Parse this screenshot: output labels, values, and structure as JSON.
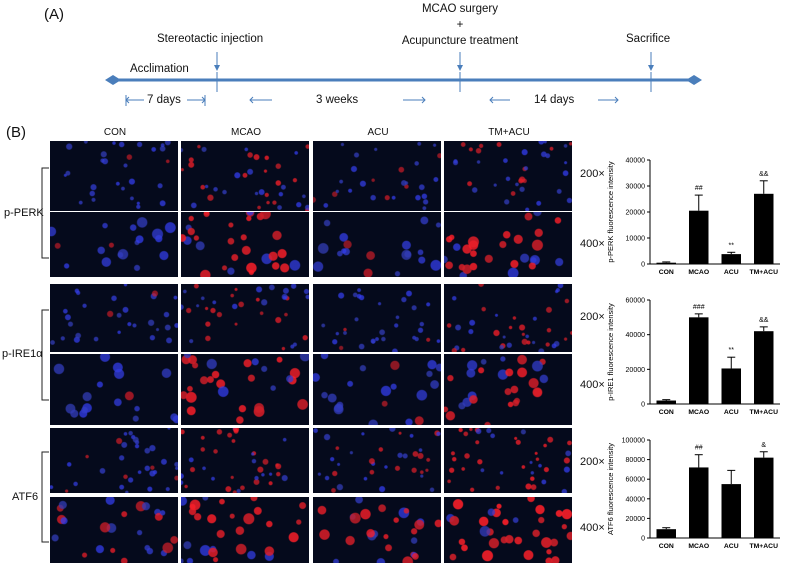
{
  "figure": {
    "panel_a_label": "(A)",
    "panel_b_label": "(B)"
  },
  "timeline": {
    "events": [
      {
        "label": "Stereotactic injection"
      },
      {
        "label": "MCAO surgery\n+\nAcupuncture treatment"
      },
      {
        "label": "Sacrifice"
      }
    ],
    "phase_label": "Acclimation",
    "intervals": [
      "7 days",
      "3 weeks",
      "14 days"
    ],
    "line_color": "#4a7ebb"
  },
  "grid": {
    "columns": [
      "CON",
      "MCAO",
      "ACU",
      "TM+ACU"
    ],
    "rows": [
      {
        "label": "p-PERK"
      },
      {
        "label": "p-IRE1α"
      },
      {
        "label": "ATF6"
      }
    ],
    "magnifications": [
      "200×",
      "400×"
    ],
    "intensity": {
      "p-PERK": [
        [
          0.12,
          0.55,
          0.15,
          0.45
        ],
        [
          0.18,
          0.75,
          0.22,
          0.7
        ]
      ],
      "p-IRE1α": [
        [
          0.15,
          0.45,
          0.25,
          0.5
        ],
        [
          0.2,
          0.7,
          0.3,
          0.65
        ]
      ],
      "ATF6": [
        [
          0.3,
          0.5,
          0.45,
          0.65
        ],
        [
          0.45,
          0.7,
          0.6,
          0.85
        ]
      ]
    }
  },
  "chart_data": [
    {
      "type": "bar",
      "title": "",
      "ylabel": "p-PERK fluorescence intensity",
      "categories": [
        "CON",
        "MCAO",
        "ACU",
        "TM+ACU"
      ],
      "values": [
        500,
        20500,
        3800,
        27000
      ],
      "errors": [
        300,
        6000,
        700,
        5000
      ],
      "annotations": [
        "",
        "##",
        "**",
        "&&"
      ],
      "ylim": [
        0,
        40000
      ],
      "yticks": [
        "0",
        "10000",
        "20000",
        "30000",
        "40000"
      ]
    },
    {
      "type": "bar",
      "title": "",
      "ylabel": "p-IRE1 fluorescence intensity",
      "categories": [
        "CON",
        "MCAO",
        "ACU",
        "TM+ACU"
      ],
      "values": [
        2000,
        50000,
        20500,
        42000
      ],
      "errors": [
        500,
        2000,
        6500,
        2500
      ],
      "annotations": [
        "",
        "###",
        "**",
        "&&"
      ],
      "ylim": [
        0,
        60000
      ],
      "yticks": [
        "0",
        "20000",
        "40000",
        "60000"
      ]
    },
    {
      "type": "bar",
      "title": "",
      "ylabel": "ATF6 fluorescence intensity",
      "categories": [
        "CON",
        "MCAO",
        "ACU",
        "TM+ACU"
      ],
      "values": [
        9000,
        72000,
        55000,
        82000
      ],
      "errors": [
        1500,
        13000,
        14000,
        6000
      ],
      "annotations": [
        "",
        "##",
        "",
        "&"
      ],
      "ylim": [
        0,
        100000
      ],
      "yticks": [
        "0",
        "20000",
        "40000",
        "60000",
        "80000",
        "100000"
      ]
    }
  ]
}
